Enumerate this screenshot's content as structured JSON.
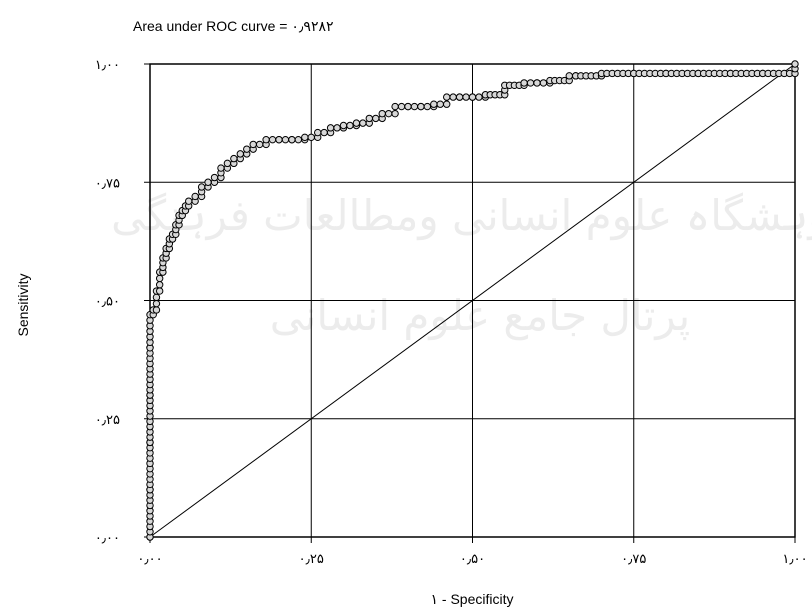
{
  "chart_data": {
    "type": "line",
    "title": "Area under ROC curve = ۰٫۹۲۸۲",
    "xlabel": "۱ - Specificity",
    "ylabel": "Sensitivity",
    "xlim": [
      0,
      1
    ],
    "ylim": [
      0,
      1
    ],
    "grid": true,
    "x_ticks": [
      0,
      0.25,
      0.5,
      0.75,
      1
    ],
    "y_ticks": [
      0,
      0.25,
      0.5,
      0.75,
      1
    ],
    "x_tick_labels": [
      "۰٫۰۰",
      "۰٫۲۵",
      "۰٫۵۰",
      "۰٫۷۵",
      "۱٫۰۰"
    ],
    "y_tick_labels": [
      "۰٫۰۰",
      "۰٫۲۵",
      "۰٫۵۰",
      "۰٫۷۵",
      "۱٫۰۰"
    ],
    "series": [
      {
        "points": [
          [
            0.0,
            0.0
          ],
          [
            0.0,
            0.1
          ],
          [
            0.0,
            0.2
          ],
          [
            0.0,
            0.3
          ],
          [
            0.0,
            0.4
          ],
          [
            0.0,
            0.47
          ],
          [
            0.005,
            0.48
          ],
          [
            0.01,
            0.52
          ],
          [
            0.015,
            0.56
          ],
          [
            0.02,
            0.59
          ],
          [
            0.025,
            0.61
          ],
          [
            0.03,
            0.63
          ],
          [
            0.035,
            0.64
          ],
          [
            0.04,
            0.66
          ],
          [
            0.045,
            0.68
          ],
          [
            0.05,
            0.69
          ],
          [
            0.055,
            0.7
          ],
          [
            0.06,
            0.71
          ],
          [
            0.07,
            0.72
          ],
          [
            0.08,
            0.74
          ],
          [
            0.09,
            0.75
          ],
          [
            0.1,
            0.76
          ],
          [
            0.11,
            0.78
          ],
          [
            0.12,
            0.79
          ],
          [
            0.13,
            0.8
          ],
          [
            0.14,
            0.81
          ],
          [
            0.15,
            0.82
          ],
          [
            0.16,
            0.83
          ],
          [
            0.18,
            0.84
          ],
          [
            0.2,
            0.84
          ],
          [
            0.22,
            0.84
          ],
          [
            0.24,
            0.845
          ],
          [
            0.26,
            0.855
          ],
          [
            0.28,
            0.865
          ],
          [
            0.3,
            0.87
          ],
          [
            0.32,
            0.875
          ],
          [
            0.34,
            0.885
          ],
          [
            0.36,
            0.895
          ],
          [
            0.38,
            0.91
          ],
          [
            0.4,
            0.91
          ],
          [
            0.42,
            0.91
          ],
          [
            0.44,
            0.915
          ],
          [
            0.46,
            0.93
          ],
          [
            0.48,
            0.93
          ],
          [
            0.5,
            0.93
          ],
          [
            0.52,
            0.935
          ],
          [
            0.55,
            0.955
          ],
          [
            0.58,
            0.96
          ],
          [
            0.6,
            0.96
          ],
          [
            0.62,
            0.965
          ],
          [
            0.65,
            0.975
          ],
          [
            0.66,
            0.975
          ],
          [
            0.7,
            0.98
          ],
          [
            0.75,
            0.98
          ],
          [
            0.8,
            0.98
          ],
          [
            0.85,
            0.98
          ],
          [
            0.9,
            0.98
          ],
          [
            0.95,
            0.98
          ],
          [
            1.0,
            1.0
          ]
        ]
      },
      {
        "style": "reference-line",
        "points": [
          [
            0,
            0
          ],
          [
            1,
            1
          ]
        ]
      }
    ]
  },
  "watermark": {
    "lines": [
      "ژوہشگاہ علوم انسانی ومطالعات فرہنگی",
      "پرتال جامع علوم انسانی"
    ]
  }
}
